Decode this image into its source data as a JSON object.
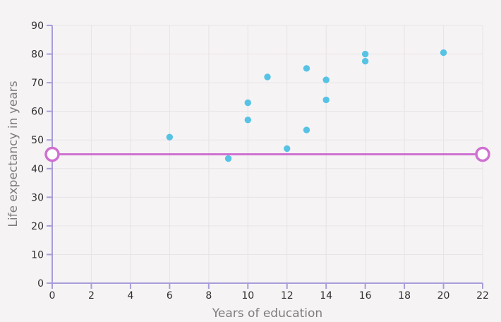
{
  "chart_data": {
    "type": "scatter",
    "xlabel": "Years of education",
    "ylabel": "Life expectancy in years",
    "xlim": [
      0,
      22
    ],
    "ylim": [
      0,
      90
    ],
    "x_ticks": [
      0,
      2,
      4,
      6,
      8,
      10,
      12,
      14,
      16,
      18,
      20,
      22
    ],
    "y_ticks": [
      0,
      10,
      20,
      30,
      40,
      50,
      60,
      70,
      80,
      90
    ],
    "grid": true,
    "series": [
      {
        "type": "scatter",
        "color": "#57c3e4",
        "points": [
          {
            "x": 6,
            "y": 51
          },
          {
            "x": 9,
            "y": 43.5
          },
          {
            "x": 10,
            "y": 63
          },
          {
            "x": 10,
            "y": 57
          },
          {
            "x": 11,
            "y": 72
          },
          {
            "x": 12,
            "y": 47
          },
          {
            "x": 13,
            "y": 75
          },
          {
            "x": 13,
            "y": 53.5
          },
          {
            "x": 14,
            "y": 71
          },
          {
            "x": 14,
            "y": 64
          },
          {
            "x": 16,
            "y": 80
          },
          {
            "x": 16,
            "y": 77.5
          },
          {
            "x": 20,
            "y": 80.5
          }
        ]
      },
      {
        "type": "line",
        "color": "#cf71d1",
        "points": [
          {
            "x": 0,
            "y": 45
          },
          {
            "x": 22,
            "y": 45
          }
        ]
      }
    ]
  }
}
